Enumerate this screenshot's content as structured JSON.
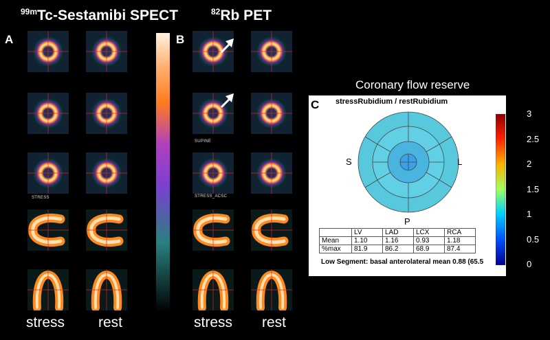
{
  "panel_a": {
    "label": "A",
    "title_sup": "99m",
    "title_main": "Tc-Sestamibi SPECT",
    "stress_caption": "stress",
    "rest_caption": "rest",
    "small_label": "STRESS"
  },
  "panel_b": {
    "label": "B",
    "title_sup": "82",
    "title_main": "Rb PET",
    "stress_caption": "stress",
    "rest_caption": "rest",
    "small_label_1": "SUPINE",
    "small_label_2": "STRESS_ACSC"
  },
  "panel_c": {
    "label": "C",
    "header": "Coronary flow reserve",
    "title": "stressRubidium / restRubidium",
    "directions": {
      "septal": "S",
      "lateral": "L",
      "posterior": "P"
    },
    "colorbar_ticks": [
      "3",
      "2.5",
      "2",
      "1.5",
      "1",
      "0.5",
      "0"
    ],
    "table": {
      "headers": [
        "",
        "LV",
        "LAD",
        "LCX",
        "RCA"
      ],
      "rows": [
        [
          "Mean",
          "1.10",
          "1.16",
          "0.93",
          "1.18"
        ],
        [
          "%max",
          "81.9",
          "86.2",
          "68.9",
          "87.4"
        ]
      ]
    },
    "low_segment": "Low Segment: basal anterolateral mean 0.88 (65.5"
  },
  "colors": {
    "background": "#000000",
    "polar_map_fill": "#5fd0e0",
    "colorbar_top": "#8b0000",
    "colorbar_bottom": "#00008b"
  }
}
